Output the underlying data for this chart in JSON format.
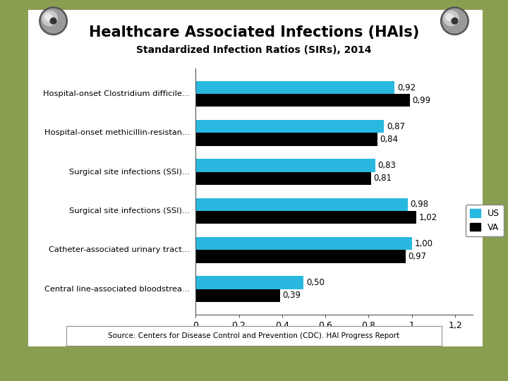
{
  "title": "Healthcare Associated Infections (HAIs)",
  "subtitle": "Standardized Infection Ratios (SIRs), 2014",
  "categories": [
    "Hospital-onset Clostridium difficile...",
    "Hospital-onset methicillin-resistan...",
    "Surgical site infections (SSI)...",
    "Surgical site infections (SSI)...",
    "Catheter-associated urinary tract...",
    "Central line-associated bloodstrea..."
  ],
  "us_values": [
    0.92,
    0.87,
    0.83,
    0.98,
    1.0,
    0.5
  ],
  "va_values": [
    0.99,
    0.84,
    0.81,
    1.02,
    0.97,
    0.39
  ],
  "us_color": "#29B8E0",
  "va_color": "#000000",
  "background_outer": "#8A9E52",
  "background_paper": "#FFFFFF",
  "xlim": [
    0,
    1.28
  ],
  "xticks": [
    0,
    0.2,
    0.4,
    0.6,
    0.8,
    1.0,
    1.2
  ],
  "xtick_labels": [
    "0",
    "0,2",
    "0,4",
    "0,6",
    "0,8",
    "1",
    "1,2"
  ],
  "source_text": "Source: Centers for Disease Control and Prevention (CDC). HAI Progress Report",
  "legend_us": "US",
  "legend_va": "VA"
}
